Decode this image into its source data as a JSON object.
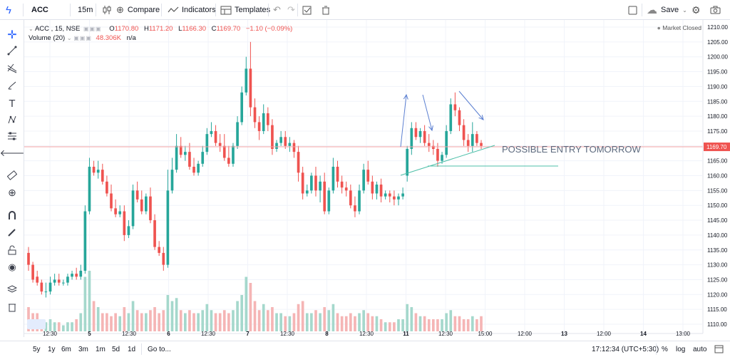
{
  "toolbar": {
    "symbol": "ACC",
    "interval": "15m",
    "compare_label": "Compare",
    "indicators_label": "Indicators",
    "templates_label": "Templates",
    "save_label": "Save"
  },
  "legend": {
    "symbol_line": "ACC , 15, NSE",
    "open_label": "O",
    "open": "1170.80",
    "high_label": "H",
    "high": "1171.20",
    "low_label": "L",
    "low": "1166.30",
    "close_label": "C",
    "close": "1169.70",
    "change": "−1.10 (−0.09%)",
    "volume_line": "Volume (20)",
    "volume_value": "48.306K",
    "volume_na": "n/a"
  },
  "market_status": "Market Closed",
  "price_axis": {
    "ticks": [
      "1210.00",
      "1205.00",
      "1200.00",
      "1195.00",
      "1190.00",
      "1185.00",
      "1180.00",
      "1175.00",
      "1170.00",
      "1165.00",
      "1160.00",
      "1155.00",
      "1150.00",
      "1145.00",
      "1140.00",
      "1135.00",
      "1130.00",
      "1125.00",
      "1120.00",
      "1115.00",
      "1110.00"
    ],
    "current_price": "1169.70"
  },
  "time_axis": {
    "labels": [
      "12:30",
      "5",
      "12:30",
      "6",
      "12:30",
      "7",
      "12:30",
      "8",
      "12:30",
      "11",
      "12:30",
      "15:00",
      "12:00",
      "13",
      "12:00",
      "14",
      "13:00"
    ]
  },
  "annotation": "POSSIBLE ENTRY TOMORROW",
  "bottom": {
    "ranges": [
      "5y",
      "1y",
      "6m",
      "3m",
      "1m",
      "5d",
      "1d"
    ],
    "goto_label": "Go to...",
    "clock": "17:12:34 (UTC+5:30)",
    "percent_label": "%",
    "log_label": "log",
    "auto_label": "auto"
  },
  "colors": {
    "up": "#26a69a",
    "down": "#ef5350",
    "up_volume": "#a5d8cc",
    "down_volume": "#f5b5b5",
    "price_tag": "#ef5350",
    "annotation_text": "#5d6a7e",
    "arrow": "#5b7fd1",
    "trendline": "#4dbfa8"
  },
  "chart_data": {
    "type": "candlestick",
    "ylim": [
      1110,
      1210
    ],
    "candles": [
      [
        1134,
        1136,
        1130,
        1128
      ],
      [
        1130,
        1131,
        1125,
        1124
      ],
      [
        1126,
        1128,
        1124,
        1123
      ],
      [
        1124,
        1125,
        1121,
        1120
      ],
      [
        1121,
        1124,
        1121,
        1119
      ],
      [
        1121,
        1126,
        1124,
        1120
      ],
      [
        1124,
        1127,
        1125,
        1123
      ],
      [
        1125,
        1127,
        1124,
        1123
      ],
      [
        1124,
        1125,
        1124,
        1123
      ],
      [
        1124,
        1127,
        1126,
        1123
      ],
      [
        1126,
        1128,
        1127,
        1125
      ],
      [
        1127,
        1129,
        1126,
        1125
      ],
      [
        1126,
        1130,
        1128,
        1125
      ],
      [
        1128,
        1150,
        1148,
        1127
      ],
      [
        1148,
        1166,
        1163,
        1147
      ],
      [
        1163,
        1165,
        1161,
        1160
      ],
      [
        1161,
        1165,
        1162,
        1159
      ],
      [
        1162,
        1164,
        1158,
        1157
      ],
      [
        1158,
        1160,
        1154,
        1153
      ],
      [
        1154,
        1157,
        1149,
        1148
      ],
      [
        1149,
        1152,
        1147,
        1146
      ],
      [
        1147,
        1150,
        1148,
        1146
      ],
      [
        1148,
        1150,
        1140,
        1138
      ],
      [
        1140,
        1145,
        1143,
        1139
      ],
      [
        1143,
        1157,
        1155,
        1142
      ],
      [
        1155,
        1158,
        1152,
        1151
      ],
      [
        1152,
        1155,
        1148,
        1147
      ],
      [
        1148,
        1154,
        1153,
        1147
      ],
      [
        1153,
        1156,
        1145,
        1144
      ],
      [
        1145,
        1147,
        1136,
        1135
      ],
      [
        1136,
        1138,
        1134,
        1133
      ],
      [
        1134,
        1136,
        1130,
        1128
      ],
      [
        1130,
        1162,
        1155,
        1129
      ],
      [
        1155,
        1166,
        1162,
        1154
      ],
      [
        1162,
        1174,
        1170,
        1161
      ],
      [
        1170,
        1173,
        1167,
        1166
      ],
      [
        1167,
        1170,
        1168,
        1165
      ],
      [
        1168,
        1171,
        1163,
        1162
      ],
      [
        1163,
        1166,
        1161,
        1160
      ],
      [
        1161,
        1165,
        1164,
        1160
      ],
      [
        1164,
        1170,
        1168,
        1163
      ],
      [
        1168,
        1176,
        1174,
        1167
      ],
      [
        1174,
        1178,
        1175,
        1173
      ],
      [
        1175,
        1177,
        1171,
        1170
      ],
      [
        1171,
        1174,
        1170,
        1168
      ],
      [
        1170,
        1174,
        1166,
        1165
      ],
      [
        1166,
        1170,
        1164,
        1163
      ],
      [
        1164,
        1171,
        1170,
        1163
      ],
      [
        1170,
        1180,
        1178,
        1169
      ],
      [
        1178,
        1190,
        1188,
        1177
      ],
      [
        1188,
        1200,
        1196,
        1187
      ],
      [
        1196,
        1205,
        1183,
        1180
      ],
      [
        1183,
        1186,
        1178,
        1176
      ],
      [
        1178,
        1180,
        1175,
        1172
      ],
      [
        1175,
        1184,
        1181,
        1174
      ],
      [
        1181,
        1183,
        1177,
        1175
      ],
      [
        1177,
        1179,
        1169,
        1167
      ],
      [
        1169,
        1172,
        1171,
        1168
      ],
      [
        1171,
        1175,
        1173,
        1170
      ],
      [
        1173,
        1175,
        1170,
        1169
      ],
      [
        1170,
        1173,
        1171,
        1168
      ],
      [
        1171,
        1172,
        1168,
        1166
      ],
      [
        1168,
        1170,
        1161,
        1158
      ],
      [
        1161,
        1163,
        1154,
        1152
      ],
      [
        1154,
        1157,
        1155,
        1153
      ],
      [
        1155,
        1161,
        1160,
        1154
      ],
      [
        1160,
        1163,
        1155,
        1153
      ],
      [
        1155,
        1160,
        1158,
        1151
      ],
      [
        1158,
        1161,
        1148,
        1147
      ],
      [
        1148,
        1156,
        1155,
        1147
      ],
      [
        1155,
        1166,
        1163,
        1154
      ],
      [
        1163,
        1165,
        1158,
        1156
      ],
      [
        1158,
        1160,
        1156,
        1154
      ],
      [
        1156,
        1158,
        1155,
        1153
      ],
      [
        1155,
        1157,
        1150,
        1149
      ],
      [
        1150,
        1153,
        1148,
        1146
      ],
      [
        1148,
        1157,
        1155,
        1147
      ],
      [
        1155,
        1164,
        1162,
        1154
      ],
      [
        1162,
        1165,
        1158,
        1157
      ],
      [
        1158,
        1160,
        1154,
        1152
      ],
      [
        1154,
        1158,
        1157,
        1152
      ],
      [
        1157,
        1159,
        1153,
        1151
      ],
      [
        1153,
        1155,
        1154,
        1152
      ],
      [
        1154,
        1155,
        1153,
        1151
      ],
      [
        1153,
        1155,
        1152,
        1150
      ],
      [
        1152,
        1154,
        1153,
        1150
      ],
      [
        1153,
        1156,
        1154,
        1152
      ],
      [
        1160,
        1170,
        1169,
        1158
      ],
      [
        1169,
        1178,
        1176,
        1167
      ],
      [
        1176,
        1178,
        1173,
        1172
      ],
      [
        1173,
        1176,
        1175,
        1171
      ],
      [
        1175,
        1177,
        1171,
        1170
      ],
      [
        1171,
        1174,
        1170,
        1168
      ],
      [
        1170,
        1172,
        1169,
        1167
      ],
      [
        1169,
        1171,
        1165,
        1163
      ],
      [
        1165,
        1168,
        1167,
        1164
      ],
      [
        1167,
        1177,
        1175,
        1166
      ],
      [
        1175,
        1186,
        1184,
        1174
      ],
      [
        1184,
        1188,
        1182,
        1180
      ],
      [
        1182,
        1183,
        1177,
        1175
      ],
      [
        1177,
        1179,
        1172,
        1170
      ],
      [
        1172,
        1174,
        1170,
        1168
      ],
      [
        1170,
        1178,
        1174,
        1168
      ],
      [
        1174,
        1175,
        1171,
        1170
      ],
      [
        1171,
        1172,
        1170,
        1169
      ]
    ],
    "volume_relative": [
      0.4,
      0.3,
      0.3,
      0.2,
      0.15,
      0.2,
      0.15,
      0.15,
      0.1,
      0.15,
      0.15,
      0.2,
      0.3,
      0.9,
      1.0,
      0.5,
      0.4,
      0.3,
      0.3,
      0.25,
      0.3,
      0.25,
      0.4,
      0.3,
      0.5,
      0.35,
      0.3,
      0.3,
      0.35,
      0.4,
      0.3,
      0.35,
      0.6,
      0.5,
      0.55,
      0.35,
      0.3,
      0.35,
      0.3,
      0.3,
      0.35,
      0.45,
      0.35,
      0.3,
      0.3,
      0.35,
      0.3,
      0.35,
      0.5,
      0.6,
      0.9,
      0.8,
      0.5,
      0.35,
      0.45,
      0.35,
      0.4,
      0.3,
      0.3,
      0.25,
      0.25,
      0.3,
      0.45,
      0.5,
      0.3,
      0.3,
      0.35,
      0.3,
      0.4,
      0.35,
      0.45,
      0.3,
      0.25,
      0.25,
      0.3,
      0.25,
      0.3,
      0.35,
      0.3,
      0.25,
      0.25,
      0.2,
      0.15,
      0.15,
      0.15,
      0.2,
      0.2,
      0.45,
      0.4,
      0.3,
      0.25,
      0.25,
      0.2,
      0.2,
      0.2,
      0.2,
      0.3,
      0.35,
      0.25,
      0.25,
      0.2,
      0.2,
      0.25,
      0.2,
      0.25
    ]
  }
}
